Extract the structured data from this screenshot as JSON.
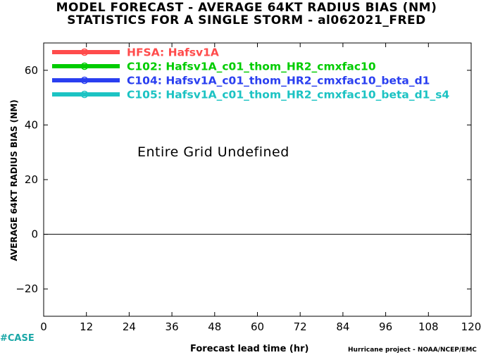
{
  "title_line1": "MODEL FORECAST - AVERAGE 64KT RADIUS BIAS (NM)",
  "title_line2": "STATISTICS FOR A SINGLE STORM - al062021_FRED",
  "note": "Entire Grid Undefined",
  "case_label": "#CASE",
  "credit": "Hurricane project - NOAA/NCEP/EMC",
  "chart_data": {
    "type": "line",
    "title": "MODEL FORECAST - AVERAGE 64KT RADIUS BIAS (NM)",
    "subtitle": "STATISTICS FOR A SINGLE STORM - al062021_FRED",
    "xlabel": "Forecast lead time (hr)",
    "ylabel": "AVERAGE 64KT RADIUS BIAS (NM)",
    "xlim": [
      0,
      120
    ],
    "ylim": [
      -30,
      70
    ],
    "xticks": [
      0,
      12,
      24,
      36,
      48,
      60,
      72,
      84,
      96,
      108,
      120
    ],
    "yticks": [
      -20,
      0,
      20,
      40,
      60
    ],
    "reference_line_y": 0,
    "grid": false,
    "legend_position": "top-left",
    "series": [
      {
        "name": "HFSA: Hafsv1A",
        "color": "#ff4b4b",
        "values": []
      },
      {
        "name": "C102: Hafsv1A_c01_thom_HR2_cmxfac10",
        "color": "#00cc00",
        "values": []
      },
      {
        "name": "C104: Hafsv1A_c01_thom_HR2_cmxfac10_beta_d1",
        "color": "#2a3ff0",
        "values": []
      },
      {
        "name": "C105: Hafsv1A_c01_thom_HR2_cmxfac10_beta_d1_s4",
        "color": "#1cc3c3",
        "values": []
      }
    ]
  }
}
